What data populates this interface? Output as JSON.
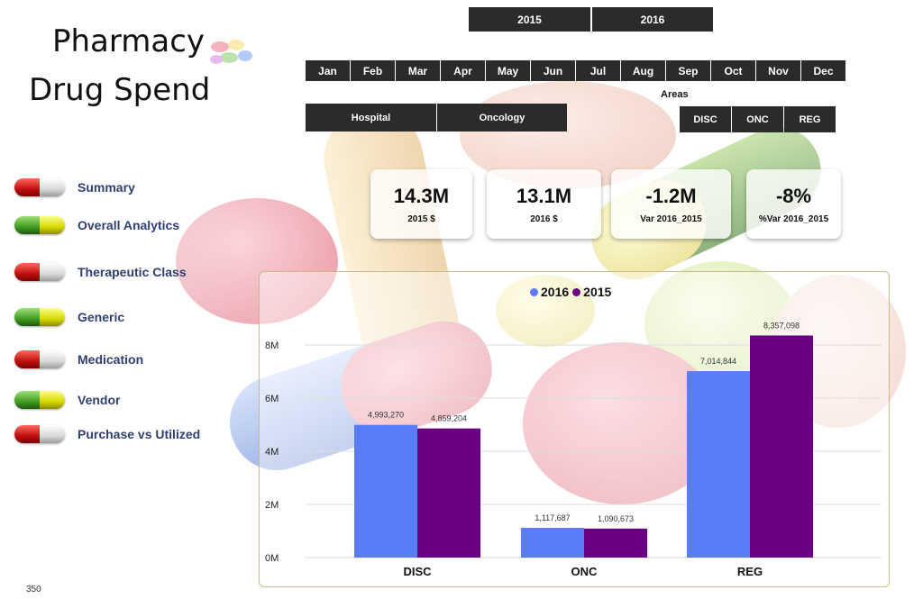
{
  "title": {
    "line1": "Pharmacy",
    "line2": "Drug Spend"
  },
  "year_slicer": [
    "2015",
    "2016"
  ],
  "month_slicer": [
    "Jan",
    "Feb",
    "Mar",
    "Apr",
    "May",
    "Jun",
    "Jul",
    "Aug",
    "Sep",
    "Oct",
    "Nov",
    "Dec"
  ],
  "setting_slicer": [
    "Hospital",
    "Oncology"
  ],
  "areas": {
    "label": "Areas",
    "options": [
      "DISC",
      "ONC",
      "REG"
    ]
  },
  "nav": [
    {
      "label": "Summary",
      "pill": "red"
    },
    {
      "label": "Overall Analytics",
      "pill": "green"
    },
    {
      "label": "Therapeutic Class",
      "pill": "red"
    },
    {
      "label": "Generic",
      "pill": "green"
    },
    {
      "label": "Medication",
      "pill": "red"
    },
    {
      "label": "Vendor",
      "pill": "green"
    },
    {
      "label": "Purchase vs Utilized",
      "pill": "red"
    }
  ],
  "kpis": [
    {
      "value": "14.3M",
      "label": "2015 $"
    },
    {
      "value": "13.1M",
      "label": "2016 $"
    },
    {
      "value": "-1.2M",
      "label": "Var 2016_2015"
    },
    {
      "value": "-8%",
      "label": "%Var 2016_2015"
    }
  ],
  "colors": {
    "series_2016": "#5b7cf7",
    "series_2015": "#6a0082",
    "slicer_bg": "#2b2b2b",
    "nav_text": "#2f3f73"
  },
  "chart_data": {
    "type": "bar",
    "categories": [
      "DISC",
      "ONC",
      "REG"
    ],
    "series": [
      {
        "name": "2016",
        "values": [
          4993270,
          1117687,
          7014844
        ],
        "labels": [
          "4,993,270",
          "1,117,687",
          "7,014,844"
        ]
      },
      {
        "name": "2015",
        "values": [
          4859204,
          1090673,
          8357098
        ],
        "labels": [
          "4,859,204",
          "1,090,673",
          "8,357,098"
        ]
      }
    ],
    "y_ticks": [
      "0M",
      "2M",
      "4M",
      "6M",
      "8M"
    ],
    "ylim": [
      0,
      8000000
    ],
    "legend_position": "top",
    "grid": true
  },
  "footer": {
    "page_number": "350"
  }
}
